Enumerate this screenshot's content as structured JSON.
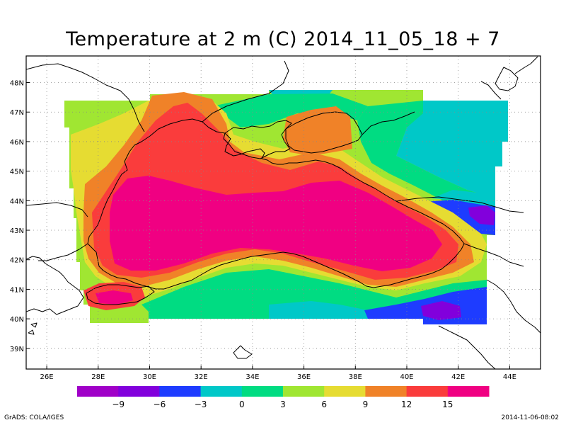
{
  "title": "Temperature at 2 m (C) 2014_11_05_18 + 7",
  "map": {
    "lon_range": [
      25.2,
      45.2
    ],
    "lat_range": [
      38.3,
      48.9
    ],
    "lon_ticks": [
      "26E",
      "28E",
      "30E",
      "32E",
      "34E",
      "36E",
      "38E",
      "40E",
      "42E",
      "44E"
    ],
    "lat_ticks": [
      "39N",
      "40N",
      "41N",
      "42N",
      "43N",
      "44N",
      "45N",
      "46N",
      "47N",
      "48N"
    ],
    "grid": true
  },
  "colorbar": {
    "colors": [
      "#a000c8",
      "#8200dc",
      "#1e3cff",
      "#00c8c8",
      "#00dc82",
      "#a0e632",
      "#e6dc32",
      "#f08228",
      "#fa3c3c",
      "#f00082"
    ],
    "labels": [
      "-9",
      "-6",
      "-3",
      "0",
      "3",
      "6",
      "9",
      "12",
      "15"
    ]
  },
  "credits": {
    "left": "GrADS: COLA/IGES",
    "right": "2014-11-06-08:02"
  }
}
